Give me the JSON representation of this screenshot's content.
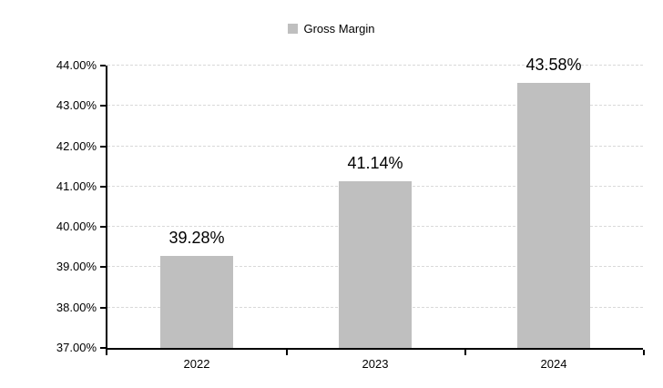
{
  "legend": {
    "label": "Gross Margin"
  },
  "colors": {
    "bar": "#bfbfbf",
    "gridline": "#d9d9d9",
    "axis": "#000000",
    "text": "#000000"
  },
  "chart_data": {
    "type": "bar",
    "title": "",
    "xlabel": "",
    "ylabel": "",
    "categories": [
      "2022",
      "2023",
      "2024"
    ],
    "series": [
      {
        "name": "Gross Margin",
        "values": [
          39.28,
          41.14,
          43.58
        ]
      }
    ],
    "value_labels": [
      "39.28%",
      "41.14%",
      "43.58%"
    ],
    "ylim": [
      37,
      44
    ],
    "ytick_step": 1,
    "ytick_labels_top_to_bottom": [
      "44.00%",
      "43.00%",
      "42.00%",
      "41.00%",
      "40.00%",
      "39.00%",
      "38.00%",
      "37.00%"
    ],
    "grid": "horizontal-dashed",
    "legend_position": "top-center"
  }
}
